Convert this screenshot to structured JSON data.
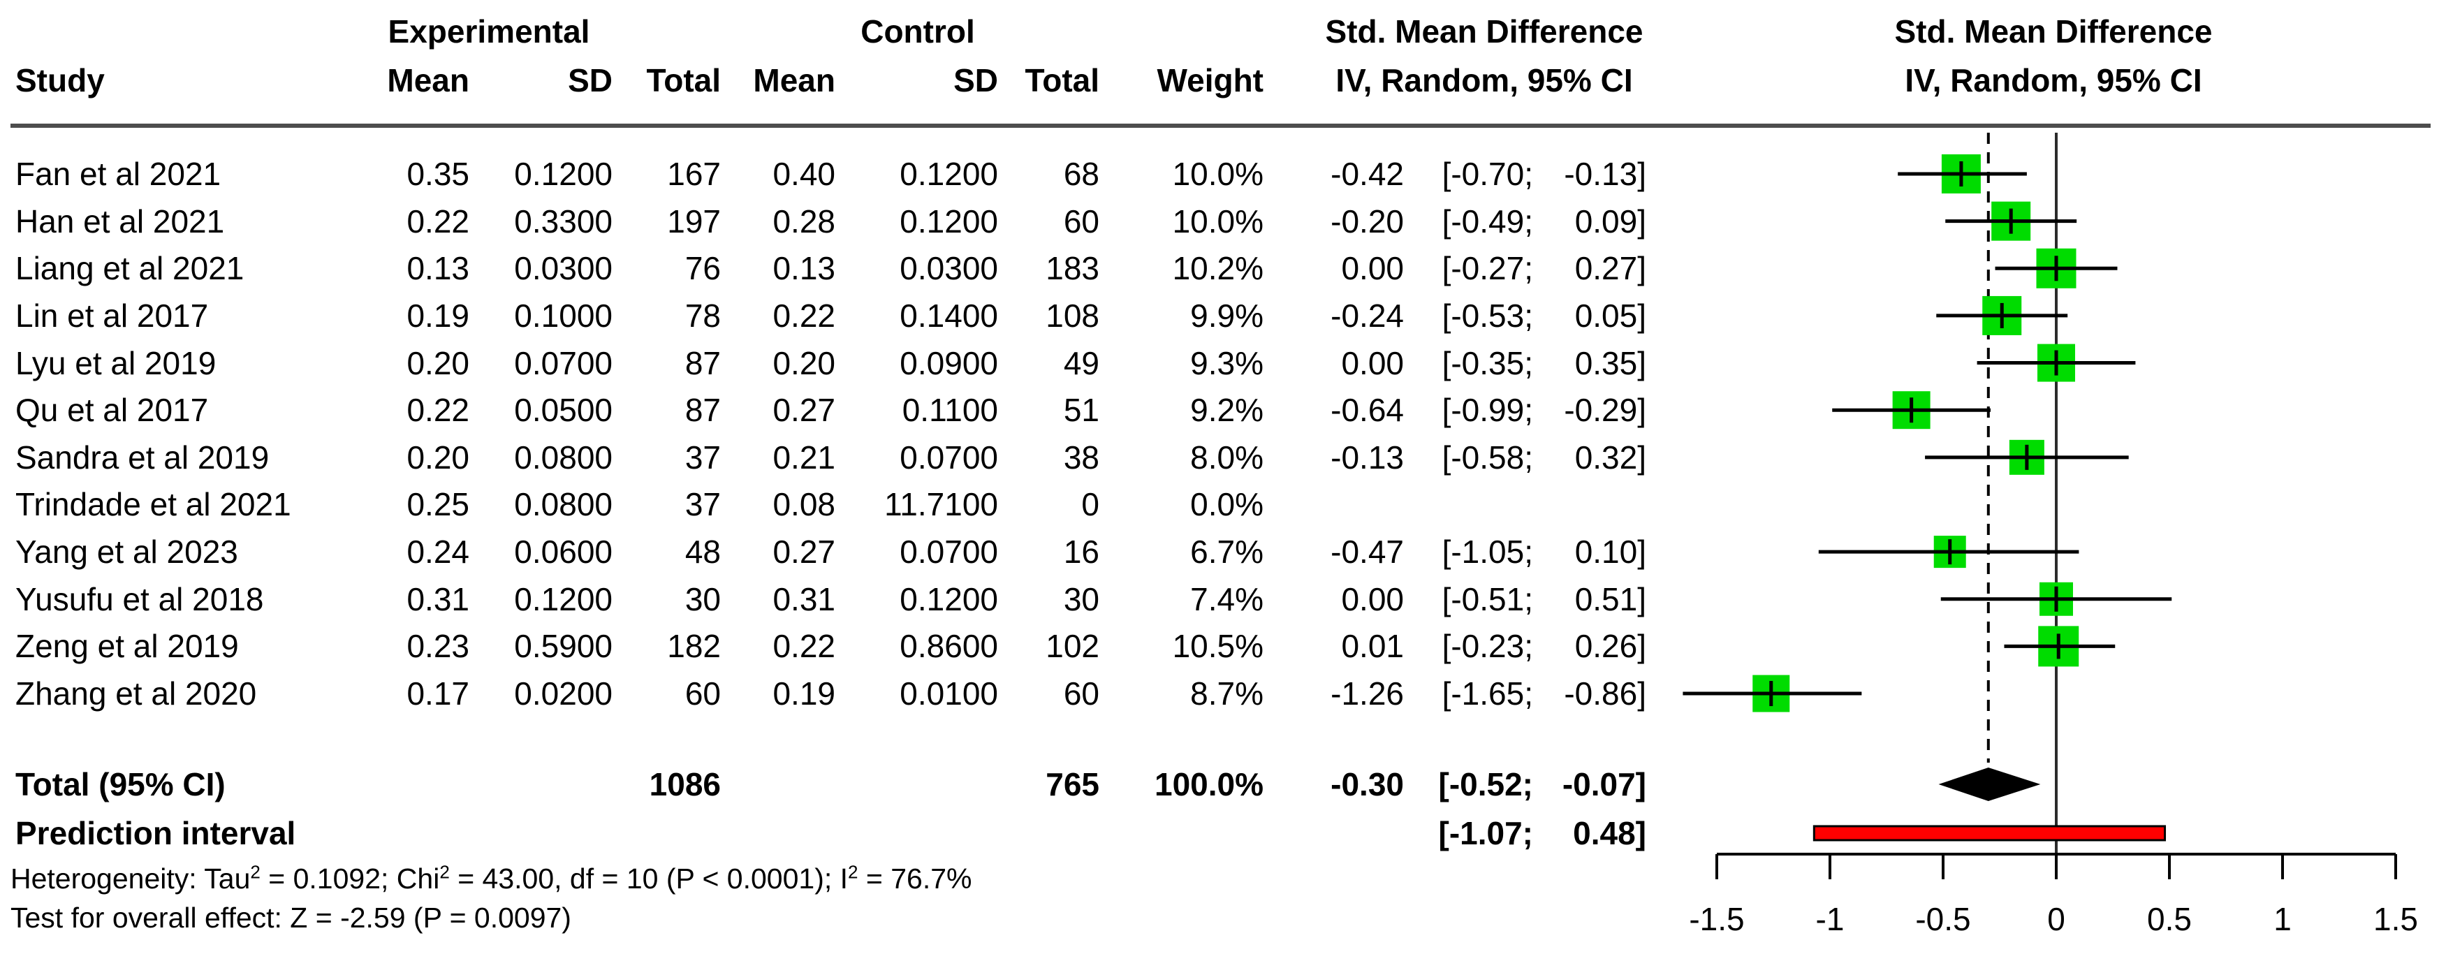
{
  "headers": {
    "group1": {
      "experimental": "Experimental",
      "control": "Control",
      "smd_left": "Std. Mean Difference",
      "smd_right": "Std. Mean Difference"
    },
    "group2": {
      "study": "Study",
      "exp_mean": "Mean",
      "exp_sd": "SD",
      "exp_total": "Total",
      "ctrl_mean": "Mean",
      "ctrl_sd": "SD",
      "ctrl_total": "Total",
      "weight": "Weight",
      "iv_left": "IV, Random, 95% CI",
      "iv_right": "IV, Random, 95% CI"
    }
  },
  "chart_data": {
    "type": "forest",
    "effect_measure": "Std. Mean Difference",
    "model": "IV, Random, 95% CI",
    "x_axis": {
      "range": [
        -1.5,
        1.5
      ],
      "ticks": [
        -1.5,
        -1,
        -0.5,
        0,
        0.5,
        1,
        1.5
      ],
      "tick_labels": [
        "-1.5",
        "-1",
        "-0.5",
        "0",
        "0.5",
        "1",
        "1.5"
      ],
      "zero_line": 0,
      "pooled_dashed_line": -0.3
    },
    "studies": [
      {
        "name": "Fan et al 2021",
        "exp_mean": 0.35,
        "exp_sd": 0.12,
        "exp_total": 167,
        "ctrl_mean": 0.4,
        "ctrl_sd": 0.12,
        "ctrl_total": 68,
        "weight": 10.0,
        "smd": -0.42,
        "ci_low": -0.7,
        "ci_high": -0.13
      },
      {
        "name": "Han et al 2021",
        "exp_mean": 0.22,
        "exp_sd": 0.33,
        "exp_total": 197,
        "ctrl_mean": 0.28,
        "ctrl_sd": 0.12,
        "ctrl_total": 60,
        "weight": 10.0,
        "smd": -0.2,
        "ci_low": -0.49,
        "ci_high": 0.09
      },
      {
        "name": "Liang et al 2021",
        "exp_mean": 0.13,
        "exp_sd": 0.03,
        "exp_total": 76,
        "ctrl_mean": 0.13,
        "ctrl_sd": 0.03,
        "ctrl_total": 183,
        "weight": 10.2,
        "smd": 0.0,
        "ci_low": -0.27,
        "ci_high": 0.27
      },
      {
        "name": "Lin et al 2017",
        "exp_mean": 0.19,
        "exp_sd": 0.1,
        "exp_total": 78,
        "ctrl_mean": 0.22,
        "ctrl_sd": 0.14,
        "ctrl_total": 108,
        "weight": 9.9,
        "smd": -0.24,
        "ci_low": -0.53,
        "ci_high": 0.05
      },
      {
        "name": "Lyu et al 2019",
        "exp_mean": 0.2,
        "exp_sd": 0.07,
        "exp_total": 87,
        "ctrl_mean": 0.2,
        "ctrl_sd": 0.09,
        "ctrl_total": 49,
        "weight": 9.3,
        "smd": 0.0,
        "ci_low": -0.35,
        "ci_high": 0.35
      },
      {
        "name": "Qu et al 2017",
        "exp_mean": 0.22,
        "exp_sd": 0.05,
        "exp_total": 87,
        "ctrl_mean": 0.27,
        "ctrl_sd": 0.11,
        "ctrl_total": 51,
        "weight": 9.2,
        "smd": -0.64,
        "ci_low": -0.99,
        "ci_high": -0.29
      },
      {
        "name": "Sandra et al 2019",
        "exp_mean": 0.2,
        "exp_sd": 0.08,
        "exp_total": 37,
        "ctrl_mean": 0.21,
        "ctrl_sd": 0.07,
        "ctrl_total": 38,
        "weight": 8.0,
        "smd": -0.13,
        "ci_low": -0.58,
        "ci_high": 0.32
      },
      {
        "name": "Trindade et al 2021",
        "exp_mean": 0.25,
        "exp_sd": 0.08,
        "exp_total": 37,
        "ctrl_mean": 0.08,
        "ctrl_sd": 11.71,
        "ctrl_total": 0,
        "weight": 0.0,
        "smd": null,
        "ci_low": null,
        "ci_high": null
      },
      {
        "name": "Yang et al 2023",
        "exp_mean": 0.24,
        "exp_sd": 0.06,
        "exp_total": 48,
        "ctrl_mean": 0.27,
        "ctrl_sd": 0.07,
        "ctrl_total": 16,
        "weight": 6.7,
        "smd": -0.47,
        "ci_low": -1.05,
        "ci_high": 0.1
      },
      {
        "name": "Yusufu et al 2018",
        "exp_mean": 0.31,
        "exp_sd": 0.12,
        "exp_total": 30,
        "ctrl_mean": 0.31,
        "ctrl_sd": 0.12,
        "ctrl_total": 30,
        "weight": 7.4,
        "smd": 0.0,
        "ci_low": -0.51,
        "ci_high": 0.51
      },
      {
        "name": "Zeng et al 2019",
        "exp_mean": 0.23,
        "exp_sd": 0.59,
        "exp_total": 182,
        "ctrl_mean": 0.22,
        "ctrl_sd": 0.86,
        "ctrl_total": 102,
        "weight": 10.5,
        "smd": 0.01,
        "ci_low": -0.23,
        "ci_high": 0.26
      },
      {
        "name": "Zhang et al 2020",
        "exp_mean": 0.17,
        "exp_sd": 0.02,
        "exp_total": 60,
        "ctrl_mean": 0.19,
        "ctrl_sd": 0.01,
        "ctrl_total": 60,
        "weight": 8.7,
        "smd": -1.26,
        "ci_low": -1.65,
        "ci_high": -0.86
      }
    ],
    "total": {
      "label": "Total (95% CI)",
      "exp_total": 1086,
      "ctrl_total": 765,
      "weight": 100.0,
      "smd": -0.3,
      "ci_low": -0.52,
      "ci_high": -0.07
    },
    "prediction_interval": {
      "label": "Prediction interval",
      "ci_low": -1.07,
      "ci_high": 0.48
    },
    "colors": {
      "square": "#00DC00",
      "diamond": "#000000",
      "prediction_bar": "#FF0000",
      "axis": "#000000",
      "rule": "#4d4d4d"
    }
  },
  "footer": {
    "heterogeneity": {
      "p1": "Heterogeneity: Tau",
      "s1": "2",
      "p2": " = 0.1092; Chi",
      "s2": "2",
      "p3": " = 43.00, df = 10 (P < 0.0001); I",
      "s3": "2",
      "p4": " = 76.7%"
    },
    "overall_effect": "Test for overall effect: Z = -2.59 (P = 0.0097)"
  }
}
